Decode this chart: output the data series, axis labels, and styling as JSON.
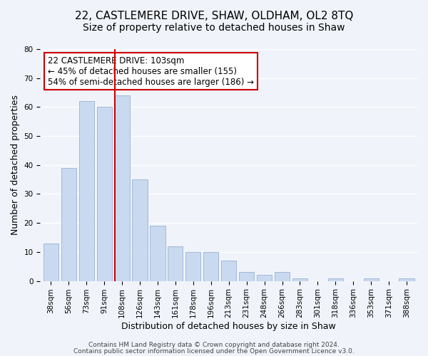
{
  "title1": "22, CASTLEMERE DRIVE, SHAW, OLDHAM, OL2 8TQ",
  "title2": "Size of property relative to detached houses in Shaw",
  "xlabel": "Distribution of detached houses by size in Shaw",
  "ylabel": "Number of detached properties",
  "categories": [
    "38sqm",
    "56sqm",
    "73sqm",
    "91sqm",
    "108sqm",
    "126sqm",
    "143sqm",
    "161sqm",
    "178sqm",
    "196sqm",
    "213sqm",
    "231sqm",
    "248sqm",
    "266sqm",
    "283sqm",
    "301sqm",
    "318sqm",
    "336sqm",
    "353sqm",
    "371sqm",
    "388sqm"
  ],
  "values": [
    13,
    39,
    62,
    60,
    64,
    35,
    19,
    12,
    10,
    10,
    7,
    3,
    2,
    3,
    1,
    0,
    1,
    0,
    1,
    0,
    1
  ],
  "bar_color": "#c9d9f0",
  "bar_edge_color": "#a0b8d8",
  "vline_x": 3.575,
  "vline_color": "#cc0000",
  "annotation_text": "22 CASTLEMERE DRIVE: 103sqm\n← 45% of detached houses are smaller (155)\n54% of semi-detached houses are larger (186) →",
  "annotation_box_color": "#ffffff",
  "annotation_box_edge_color": "#cc0000",
  "ylim": [
    0,
    80
  ],
  "yticks": [
    0,
    10,
    20,
    30,
    40,
    50,
    60,
    70,
    80
  ],
  "footer1": "Contains HM Land Registry data © Crown copyright and database right 2024.",
  "footer2": "Contains public sector information licensed under the Open Government Licence v3.0.",
  "background_color": "#f0f4fa",
  "grid_color": "#ffffff",
  "title1_fontsize": 11,
  "title2_fontsize": 10,
  "xlabel_fontsize": 9,
  "ylabel_fontsize": 9,
  "tick_fontsize": 7.5,
  "annotation_fontsize": 8.5,
  "footer_fontsize": 6.5
}
